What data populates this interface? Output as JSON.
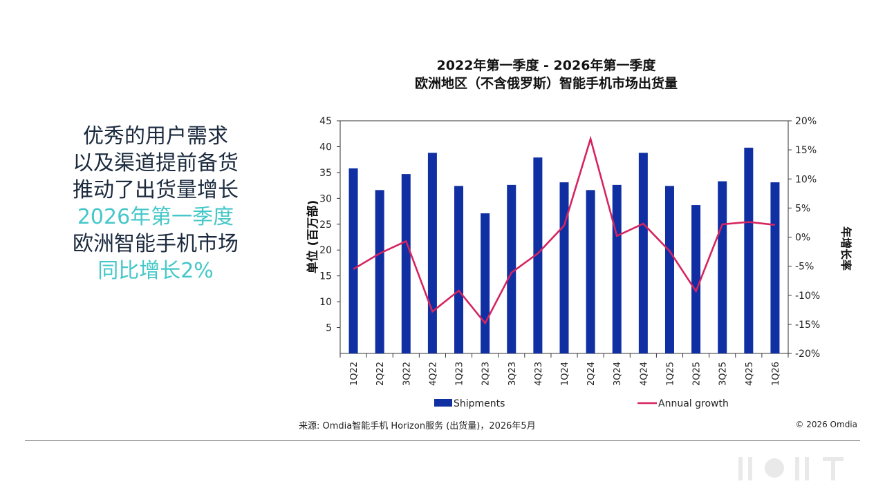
{
  "headline": {
    "line1": "优秀的用户需求",
    "line2": "以及渠道提前备货",
    "line3": "推动了出货量增长",
    "line4": "2026年第一季度",
    "line5": "欧洲智能手机市场",
    "line6": "同比增长2%"
  },
  "chart_data": {
    "type": "bar",
    "title": "2022年第一季度 - 2026年第一季度",
    "subtitle": "欧洲地区（不含俄罗斯）智能手机市场出货量",
    "ylabel": "单位 (百万部)",
    "y2label": "年增长率",
    "ylim": [
      0,
      45
    ],
    "y2lim": [
      -20,
      20
    ],
    "yticks": [
      5,
      10,
      15,
      20,
      25,
      30,
      35,
      40,
      45
    ],
    "y2ticks": [
      -20,
      -15,
      -10,
      -5,
      0,
      5,
      10,
      15,
      20
    ],
    "y2tick_labels": [
      "-20%",
      "-15%",
      "-10%",
      "-5%",
      "0%",
      "5%",
      "10%",
      "15%",
      "20%"
    ],
    "categories": [
      "1Q22",
      "2Q22",
      "3Q22",
      "4Q22",
      "1Q23",
      "2Q23",
      "3Q23",
      "4Q23",
      "1Q24",
      "2Q24",
      "3Q24",
      "4Q24",
      "1Q25",
      "2Q25",
      "3Q25",
      "4Q25",
      "1Q26"
    ],
    "series": [
      {
        "name": "Shipments",
        "type": "bar",
        "axis": "left",
        "color": "#0f2fa3",
        "values": [
          35.8,
          31.6,
          34.7,
          38.8,
          32.4,
          27.1,
          32.6,
          37.9,
          33.1,
          31.6,
          32.6,
          38.8,
          32.4,
          28.7,
          33.3,
          39.8,
          33.1
        ]
      },
      {
        "name": "Annual growth",
        "type": "line",
        "axis": "right",
        "color": "#d6245e",
        "values": [
          -5.5,
          -2.8,
          -0.7,
          -12.8,
          -9.2,
          -14.8,
          -6.1,
          -2.8,
          2.0,
          16.9,
          0.2,
          2.3,
          -2.4,
          -9.3,
          2.2,
          2.6,
          2.1
        ]
      }
    ],
    "legend_position": "bottom"
  },
  "footer": {
    "source": "来源: Omdia智能手机 Horizon服务 (出货量)，2026年5月",
    "copyright": "© 2026 Omdia"
  },
  "colors": {
    "headline_dark": "#1b2a3e",
    "headline_teal": "#45c7c9",
    "bar": "#0f2fa3",
    "line": "#d6245e"
  }
}
